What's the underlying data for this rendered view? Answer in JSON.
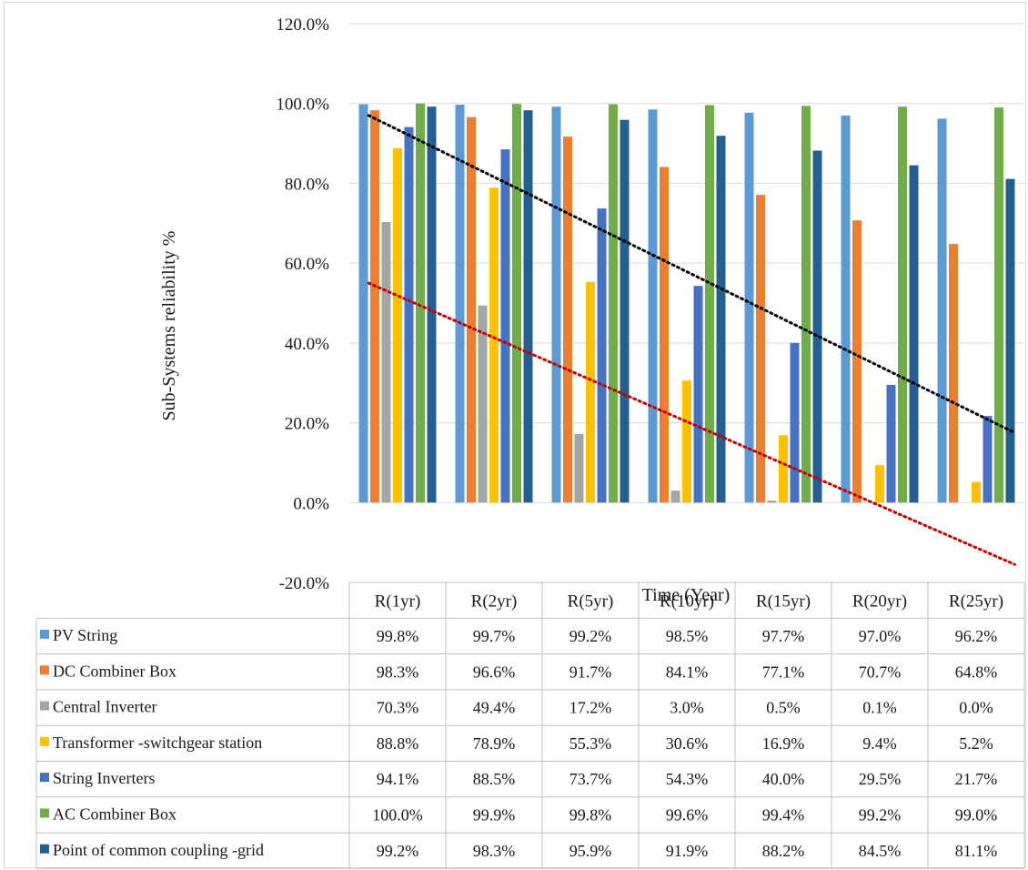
{
  "chart_data": {
    "type": "bar",
    "title": "",
    "xlabel": "Time (Year)",
    "ylabel": "Sub-Systems reliability %",
    "ylim": [
      -0.2,
      1.2
    ],
    "ytick_values": [
      -0.2,
      0,
      0.2,
      0.4,
      0.6,
      0.8,
      1.0,
      1.2
    ],
    "ytick_labels": [
      "-20.0%",
      "0.0%",
      "20.0%",
      "40.0%",
      "60.0%",
      "80.0%",
      "100.0%",
      "120.0%"
    ],
    "grid": true,
    "legend": "data-table",
    "categories": [
      "R(1yr)",
      "R(2yr)",
      "R(5yr)",
      "R(10yr)",
      "R(15yr)",
      "R(20yr)",
      "R(25yr)"
    ],
    "series": [
      {
        "name": "PV String",
        "color": "#5b9bd5",
        "values": [
          0.998,
          0.997,
          0.992,
          0.985,
          0.977,
          0.97,
          0.962
        ],
        "labels": [
          "99.8%",
          "99.7%",
          "99.2%",
          "98.5%",
          "97.7%",
          "97.0%",
          "96.2%"
        ]
      },
      {
        "name": "DC Combiner Box",
        "color": "#ed7d31",
        "values": [
          0.983,
          0.966,
          0.917,
          0.841,
          0.771,
          0.707,
          0.648
        ],
        "labels": [
          "98.3%",
          "96.6%",
          "91.7%",
          "84.1%",
          "77.1%",
          "70.7%",
          "64.8%"
        ]
      },
      {
        "name": "Central Inverter",
        "color": "#a5a5a5",
        "values": [
          0.703,
          0.494,
          0.172,
          0.03,
          0.005,
          0.001,
          0.0
        ],
        "labels": [
          "70.3%",
          "49.4%",
          "17.2%",
          "3.0%",
          "0.5%",
          "0.1%",
          "0.0%"
        ]
      },
      {
        "name": "Transformer -switchgear station",
        "color": "#ffc000",
        "values": [
          0.888,
          0.789,
          0.553,
          0.306,
          0.169,
          0.094,
          0.052
        ],
        "labels": [
          "88.8%",
          "78.9%",
          "55.3%",
          "30.6%",
          "16.9%",
          "9.4%",
          "5.2%"
        ]
      },
      {
        "name": "String Inverters",
        "color": "#4472c4",
        "values": [
          0.941,
          0.885,
          0.737,
          0.543,
          0.4,
          0.295,
          0.217
        ],
        "labels": [
          "94.1%",
          "88.5%",
          "73.7%",
          "54.3%",
          "40.0%",
          "29.5%",
          "21.7%"
        ]
      },
      {
        "name": "AC Combiner Box",
        "color": "#70ad47",
        "values": [
          1.0,
          0.999,
          0.998,
          0.996,
          0.994,
          0.992,
          0.99
        ],
        "labels": [
          "100.0%",
          "99.9%",
          "99.8%",
          "99.6%",
          "99.4%",
          "99.2%",
          "99.0%"
        ]
      },
      {
        "name": "Point of common coupling -grid",
        "color": "#255e91",
        "values": [
          0.992,
          0.983,
          0.959,
          0.919,
          0.882,
          0.845,
          0.811
        ],
        "labels": [
          "99.2%",
          "98.3%",
          "95.9%",
          "91.9%",
          "88.2%",
          "84.5%",
          "81.1%"
        ]
      }
    ],
    "trendlines": [
      {
        "color": "#000000",
        "style": "dotted",
        "from": [
          0.7,
          0.97
        ],
        "to": [
          7.4,
          0.175
        ]
      },
      {
        "color": "#c00000",
        "style": "dotted",
        "from": [
          0.7,
          0.55
        ],
        "to": [
          7.4,
          -0.155
        ]
      }
    ]
  }
}
